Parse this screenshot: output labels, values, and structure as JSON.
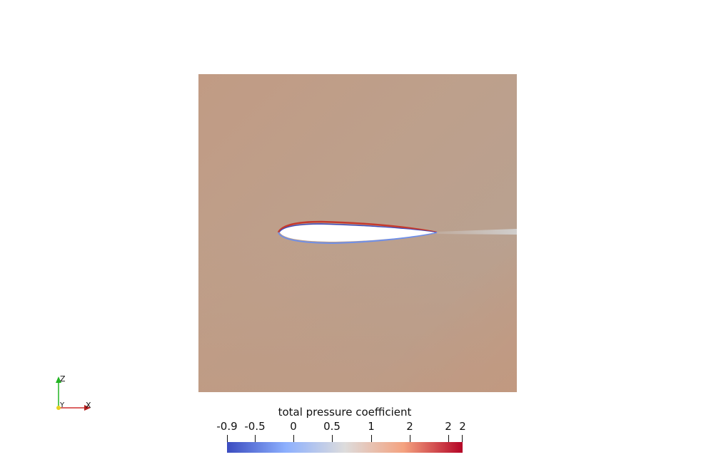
{
  "legend": {
    "title": "total pressure coefficient",
    "ticks": [
      "-0.9",
      "-0.5",
      "0",
      "0.5",
      "1",
      "2",
      "2",
      "2"
    ],
    "range": [
      -0.9,
      2
    ],
    "colormap": [
      "#3b4cc0",
      "#8db0fe",
      "#dddcdc",
      "#f4a27f",
      "#b40426"
    ]
  },
  "orientation_axes": {
    "z_label": "Z",
    "x_label": "X",
    "y_label": "Y"
  },
  "field": {
    "freestream_color": "#c29a82",
    "upper_wake_color": "#b6a190"
  }
}
